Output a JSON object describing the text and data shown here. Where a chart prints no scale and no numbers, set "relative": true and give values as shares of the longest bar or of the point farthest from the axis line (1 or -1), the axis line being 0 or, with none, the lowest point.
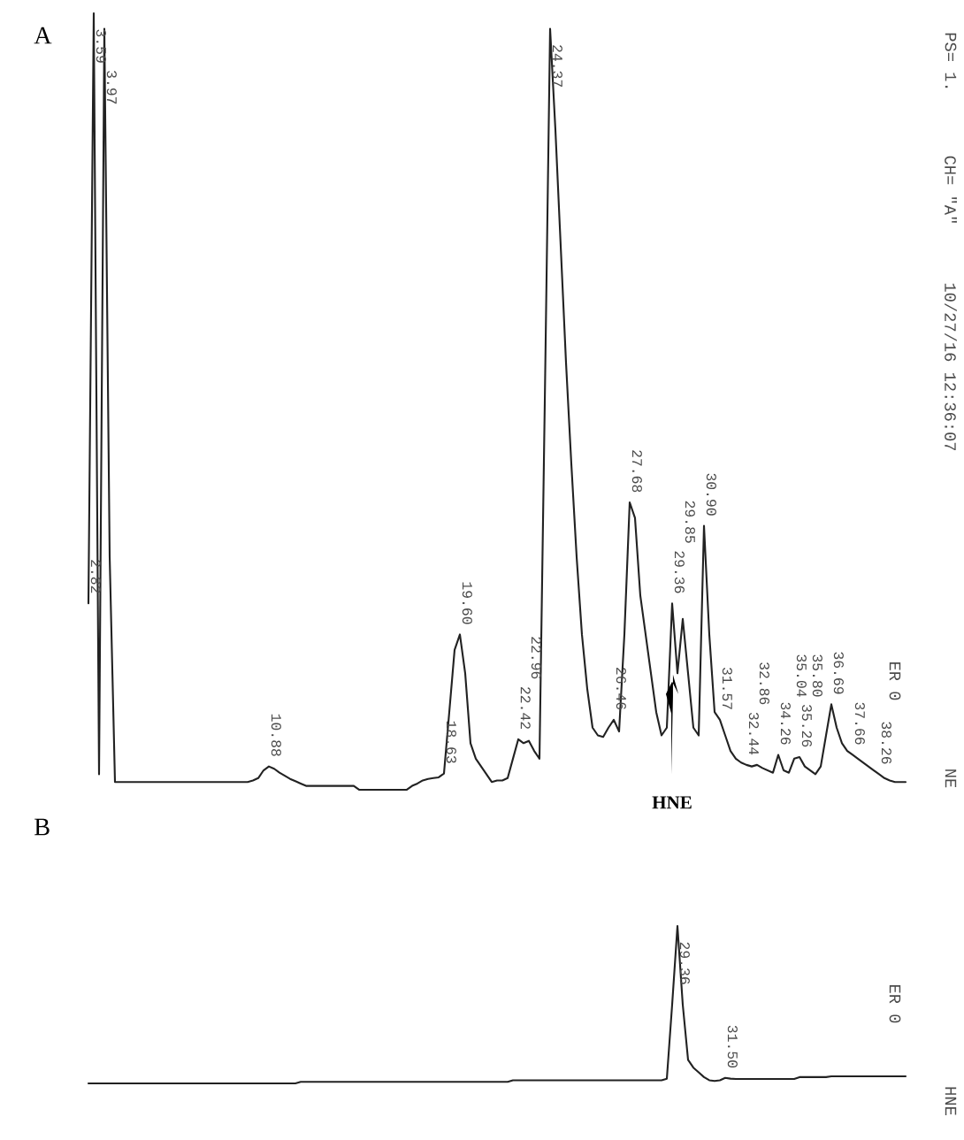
{
  "chart_data": [
    {
      "type": "line",
      "title": "A",
      "relative": true,
      "color": "#222222",
      "categories": [
        null,
        null,
        null,
        null,
        null,
        null,
        null,
        null,
        null,
        null,
        null,
        null,
        null,
        null,
        null,
        null,
        null,
        null,
        null,
        null,
        null,
        null,
        null,
        null,
        null,
        null,
        null,
        null,
        null,
        null,
        null,
        null,
        null,
        null,
        null,
        null,
        null,
        null,
        null,
        null,
        null,
        null,
        null,
        null,
        null,
        null,
        null,
        null,
        null,
        null,
        null,
        null,
        null,
        null,
        null,
        null,
        null,
        null,
        null,
        null,
        null,
        null,
        null,
        null,
        null,
        null,
        null,
        null,
        null,
        null,
        null,
        null,
        null,
        null,
        null,
        null,
        null,
        null,
        null,
        null,
        null,
        null,
        null,
        null,
        null,
        null,
        null,
        null,
        null,
        null,
        null,
        null,
        null,
        null,
        null,
        null,
        null,
        null,
        null,
        null,
        null,
        null,
        null,
        null,
        null,
        null,
        null,
        null,
        null,
        null,
        null,
        null,
        null,
        null,
        null,
        null,
        null,
        null,
        null,
        null,
        null,
        null,
        null,
        null,
        null,
        null,
        null,
        null,
        null,
        null,
        null,
        null,
        null,
        null,
        null,
        null,
        null,
        null,
        null,
        null,
        null,
        null,
        null,
        null,
        null,
        null,
        null,
        null,
        null,
        null,
        null,
        null,
        null,
        null,
        null
      ],
      "values": [
        0.24,
        1.0,
        0.02,
        0.98,
        0.3,
        0.01,
        0.01,
        0.01,
        0.01,
        0.01,
        0.01,
        0.01,
        0.01,
        0.01,
        0.01,
        0.01,
        0.01,
        0.01,
        0.01,
        0.01,
        0.01,
        0.01,
        0.01,
        0.01,
        0.01,
        0.01,
        0.01,
        0.01,
        0.01,
        0.01,
        0.01,
        0.012,
        0.015,
        0.025,
        0.03,
        0.027,
        0.022,
        0.018,
        0.014,
        0.011,
        0.008,
        0.005,
        0.005,
        0.005,
        0.005,
        0.005,
        0.005,
        0.005,
        0.005,
        0.005,
        0.005,
        0.0,
        0.0,
        0.0,
        0.0,
        0.0,
        0.0,
        0.0,
        0.0,
        0.0,
        0.0,
        0.005,
        0.008,
        0.012,
        0.014,
        0.015,
        0.016,
        0.021,
        0.1,
        0.18,
        0.2,
        0.15,
        0.06,
        0.04,
        0.03,
        0.02,
        0.01,
        0.012,
        0.012,
        0.015,
        0.04,
        0.065,
        0.06,
        0.063,
        0.05,
        0.04,
        0.5,
        0.98,
        0.85,
        0.7,
        0.55,
        0.42,
        0.3,
        0.2,
        0.13,
        0.08,
        0.07,
        0.068,
        0.08,
        0.09,
        0.075,
        0.2,
        0.37,
        0.35,
        0.25,
        0.2,
        0.15,
        0.1,
        0.07,
        0.08,
        0.24,
        0.15,
        0.22,
        0.15,
        0.08,
        0.07,
        0.34,
        0.2,
        0.1,
        0.09,
        0.07,
        0.05,
        0.04,
        0.035,
        0.032,
        0.03,
        0.032,
        0.028,
        0.025,
        0.022,
        0.045,
        0.025,
        0.022,
        0.04,
        0.042,
        0.03,
        0.025,
        0.02,
        0.03,
        0.07,
        0.11,
        0.08,
        0.06,
        0.05,
        0.045,
        0.04,
        0.035,
        0.03,
        0.025,
        0.02,
        0.015,
        0.012,
        0.01,
        0.01,
        0.01
      ],
      "annotations": [
        "2.82",
        "3.59",
        "3.97",
        "10.88",
        "18.63",
        "19.60",
        "22.42",
        "22.96",
        "24.37",
        "26.46",
        "27.68",
        "29.36",
        "29.85",
        "30.90",
        "31.57",
        "32.44",
        "32.86",
        "34.26",
        "35.04",
        "35.26",
        "35.80",
        "36.69",
        "37.66",
        "38.26",
        "HNE",
        "10/27/16 12:36:07",
        "CH= \"A\"",
        "PS= 1.",
        "ER 0",
        "NE"
      ]
    },
    {
      "type": "line",
      "title": "B",
      "relative": true,
      "color": "#222222",
      "categories": [
        null,
        null,
        null,
        null,
        null,
        null,
        null,
        null,
        null,
        null,
        null,
        null,
        null,
        null,
        null,
        null,
        null,
        null,
        null,
        null,
        null,
        null,
        null,
        null,
        null,
        null,
        null,
        null,
        null,
        null,
        null,
        null,
        null,
        null,
        null,
        null,
        null,
        null,
        null,
        null,
        null,
        null,
        null,
        null,
        null,
        null,
        null,
        null,
        null,
        null,
        null,
        null,
        null,
        null,
        null,
        null,
        null,
        null,
        null,
        null,
        null,
        null,
        null,
        null,
        null,
        null,
        null,
        null,
        null,
        null,
        null,
        null,
        null,
        null,
        null,
        null,
        null,
        null,
        null,
        null,
        null,
        null,
        null,
        null,
        null,
        null,
        null,
        null,
        null,
        null,
        null,
        null,
        null,
        null,
        null,
        null,
        null,
        null,
        null,
        null,
        null,
        null,
        null,
        null,
        null,
        null,
        null,
        null,
        null,
        null,
        null,
        null,
        null,
        null,
        null,
        null,
        null,
        null,
        null,
        null,
        null,
        null,
        null,
        null,
        null,
        null,
        null,
        null,
        null,
        null,
        null,
        null,
        null,
        null,
        null,
        null,
        null,
        null,
        null,
        null,
        null,
        null,
        null,
        null,
        null,
        null,
        null,
        null,
        null,
        null,
        null,
        null,
        null,
        null,
        null
      ],
      "values": [
        0.0,
        0.0,
        0.0,
        0.0,
        0.0,
        0.0,
        0.0,
        0.0,
        0.0,
        0.0,
        0.0,
        0.0,
        0.0,
        0.0,
        0.0,
        0.0,
        0.0,
        0.0,
        0.0,
        0.0,
        0.0,
        0.0,
        0.0,
        0.0,
        0.0,
        0.0,
        0.0,
        0.0,
        0.0,
        0.0,
        0.0,
        0.0,
        0.0,
        0.0,
        0.0,
        0.0,
        0.0,
        0.0,
        0.0,
        0.0,
        0.01,
        0.01,
        0.01,
        0.01,
        0.01,
        0.01,
        0.01,
        0.01,
        0.01,
        0.01,
        0.01,
        0.01,
        0.01,
        0.01,
        0.01,
        0.01,
        0.01,
        0.01,
        0.01,
        0.01,
        0.01,
        0.01,
        0.01,
        0.01,
        0.01,
        0.01,
        0.01,
        0.01,
        0.01,
        0.01,
        0.01,
        0.01,
        0.01,
        0.01,
        0.01,
        0.01,
        0.01,
        0.01,
        0.01,
        0.01,
        0.02,
        0.02,
        0.02,
        0.02,
        0.02,
        0.02,
        0.02,
        0.02,
        0.02,
        0.02,
        0.02,
        0.02,
        0.02,
        0.02,
        0.02,
        0.02,
        0.02,
        0.02,
        0.02,
        0.02,
        0.02,
        0.02,
        0.02,
        0.02,
        0.02,
        0.02,
        0.02,
        0.02,
        0.02,
        0.03,
        0.5,
        1.0,
        0.5,
        0.15,
        0.1,
        0.07,
        0.04,
        0.02,
        0.015,
        0.02,
        0.035,
        0.03,
        0.028,
        0.028,
        0.028,
        0.028,
        0.028,
        0.028,
        0.028,
        0.028,
        0.028,
        0.028,
        0.028,
        0.028,
        0.04,
        0.04,
        0.04,
        0.04,
        0.04,
        0.04,
        0.045,
        0.045,
        0.045,
        0.045,
        0.045,
        0.045,
        0.045,
        0.045,
        0.045,
        0.045,
        0.045,
        0.045,
        0.045,
        0.045,
        0.045
      ],
      "annotations": [
        "29.36",
        "31.50",
        "ER 0",
        "HNE"
      ]
    }
  ]
}
